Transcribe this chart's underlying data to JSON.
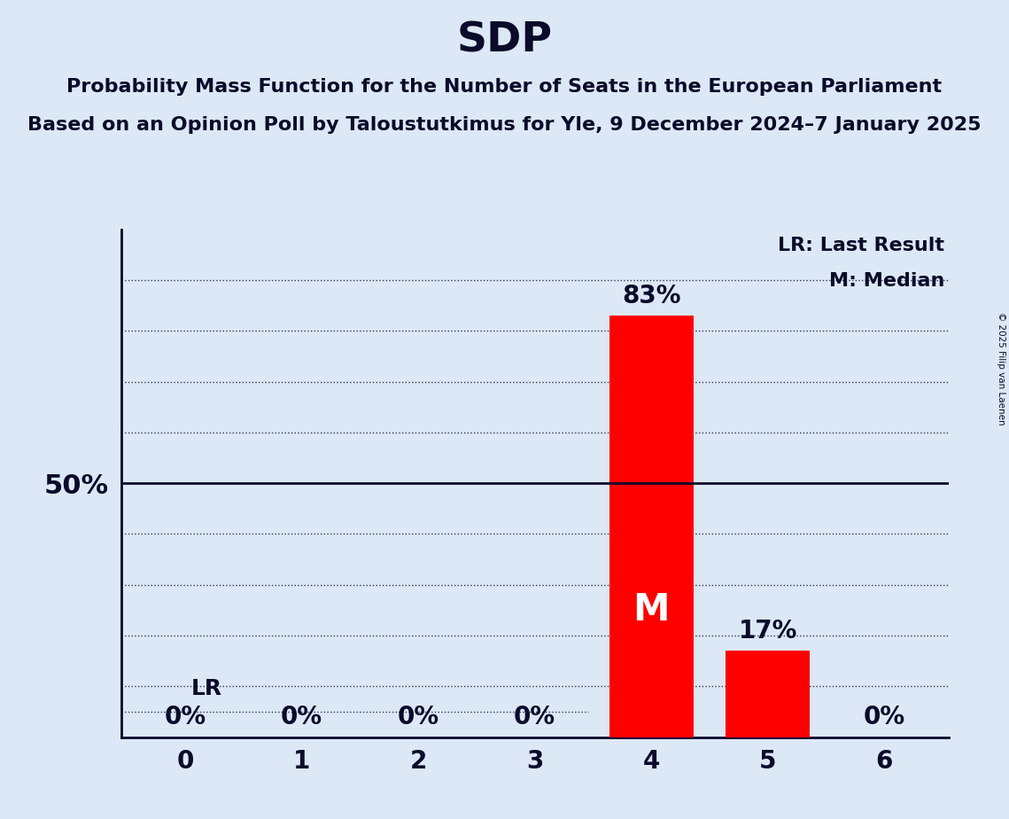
{
  "title": "SDP",
  "subtitle1": "Probability Mass Function for the Number of Seats in the European Parliament",
  "subtitle2": "Based on an Opinion Poll by Taloustutkimus for Yle, 9 December 2024–7 January 2025",
  "copyright": "© 2025 Filip van Laenen",
  "categories": [
    0,
    1,
    2,
    3,
    4,
    5,
    6
  ],
  "values": [
    0,
    0,
    0,
    0,
    83,
    17,
    0
  ],
  "bar_color": "#ff0000",
  "background_color": "#dce8f5",
  "title_fontsize": 34,
  "subtitle_fontsize": 16,
  "bar_label_fontsize": 20,
  "tick_fontsize": 20,
  "ytick_fontsize": 22,
  "legend_fontsize": 16,
  "ylabel_50": "50%",
  "ylim": [
    0,
    100
  ],
  "yticks_dotted": [
    10,
    20,
    30,
    40,
    60,
    70,
    80,
    90
  ],
  "solid_line_y": 50,
  "lr_y": 5,
  "median_seat": 4,
  "legend_lr": "LR: Last Result",
  "legend_m": "M: Median",
  "grid_color": "#333355",
  "text_color": "#0a0a2a",
  "bar_width": 0.72,
  "xlim": [
    -0.55,
    6.55
  ]
}
